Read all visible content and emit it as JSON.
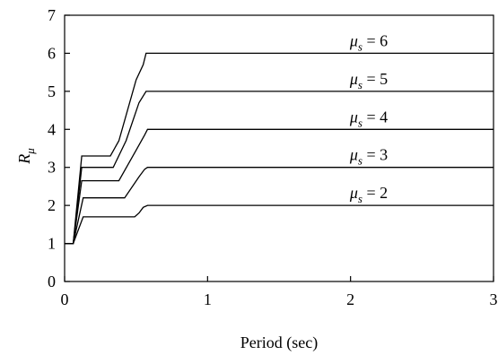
{
  "chart_data": {
    "type": "line",
    "xlabel": "Period (sec)",
    "ylabel": "R",
    "ylabel_sub": "μ",
    "xlim": [
      0,
      3
    ],
    "ylim": [
      0,
      7
    ],
    "x_ticks": [
      "0",
      "1",
      "2",
      "3"
    ],
    "y_ticks": [
      "0",
      "1",
      "2",
      "3",
      "4",
      "5",
      "6",
      "7"
    ],
    "grid": false,
    "line_color": "#000000",
    "series": [
      {
        "label_sym": "μ",
        "label_sub": "s",
        "label_rest": " = 6",
        "points": [
          [
            0,
            1
          ],
          [
            0.06,
            1
          ],
          [
            0.12,
            3.3
          ],
          [
            0.32,
            3.3
          ],
          [
            0.38,
            3.7
          ],
          [
            0.5,
            5.3
          ],
          [
            0.55,
            5.7
          ],
          [
            0.57,
            6
          ],
          [
            3,
            6
          ]
        ]
      },
      {
        "label_sym": "μ",
        "label_sub": "s",
        "label_rest": " = 5",
        "points": [
          [
            0,
            1
          ],
          [
            0.06,
            1
          ],
          [
            0.12,
            3.0
          ],
          [
            0.34,
            3.0
          ],
          [
            0.43,
            3.7
          ],
          [
            0.52,
            4.7
          ],
          [
            0.57,
            5
          ],
          [
            3,
            5
          ]
        ]
      },
      {
        "label_sym": "μ",
        "label_sub": "s",
        "label_rest": " = 4",
        "points": [
          [
            0,
            1
          ],
          [
            0.06,
            1
          ],
          [
            0.12,
            2.65
          ],
          [
            0.38,
            2.65
          ],
          [
            0.5,
            3.45
          ],
          [
            0.56,
            3.85
          ],
          [
            0.58,
            4
          ],
          [
            3,
            4
          ]
        ]
      },
      {
        "label_sym": "μ",
        "label_sub": "s",
        "label_rest": " = 3",
        "points": [
          [
            0,
            1
          ],
          [
            0.06,
            1
          ],
          [
            0.13,
            2.2
          ],
          [
            0.42,
            2.2
          ],
          [
            0.52,
            2.75
          ],
          [
            0.56,
            2.95
          ],
          [
            0.58,
            3
          ],
          [
            3,
            3
          ]
        ]
      },
      {
        "label_sym": "μ",
        "label_sub": "s",
        "label_rest": " = 2",
        "points": [
          [
            0,
            1
          ],
          [
            0.06,
            1
          ],
          [
            0.13,
            1.7
          ],
          [
            0.49,
            1.7
          ],
          [
            0.52,
            1.8
          ],
          [
            0.55,
            1.95
          ],
          [
            0.58,
            2
          ],
          [
            3,
            2
          ]
        ]
      }
    ]
  }
}
